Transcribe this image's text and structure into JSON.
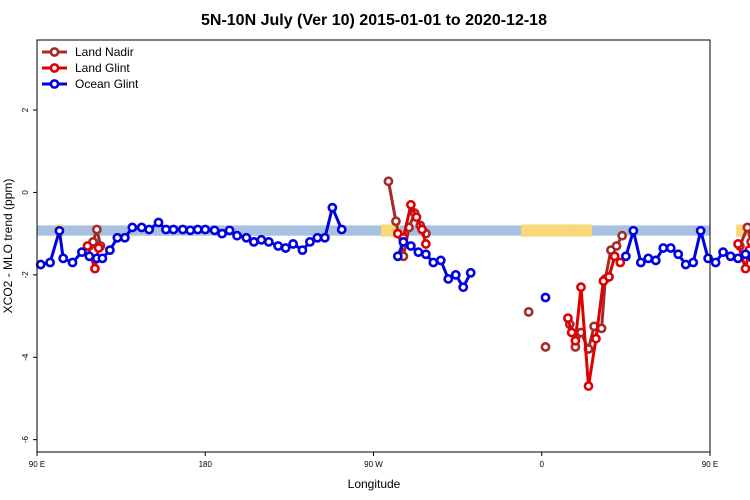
{
  "chart_data": {
    "type": "line",
    "title": "5N-10N July (Ver 10)   2015-01-01 to 2020-12-18",
    "xlabel": "Longitude",
    "ylabel": "XCO2 - MLO trend (ppm)",
    "xlim": [
      0,
      360
    ],
    "ylim": [
      -6.3,
      3.7
    ],
    "x_ticks": [
      {
        "value": 0,
        "label": "90 E"
      },
      {
        "value": 90,
        "label": "180"
      },
      {
        "value": 180,
        "label": "90 W"
      },
      {
        "value": 270,
        "label": "0"
      },
      {
        "value": 360,
        "label": "90 E"
      },
      {
        "value": 450,
        "label": "180"
      }
    ],
    "y_ticks": [
      2,
      0,
      -2,
      -4,
      -6
    ],
    "legend_position": "top-left",
    "band": {
      "y_top": -0.8,
      "y_bottom": -1.05,
      "ocean_color": "#a8c1e0",
      "land_color": "#f9d87a",
      "land_segments": [
        {
          "x_start": 10,
          "x_end": 14
        },
        {
          "x_start": 184,
          "x_end": 194
        },
        {
          "x_start": 259,
          "x_end": 285
        },
        {
          "x_start": 285,
          "x_end": 297
        },
        {
          "x_start": 374,
          "x_end": 382
        }
      ]
    },
    "series": [
      {
        "name": "Land Nadir",
        "color": "#a52a2a",
        "segments": [
          [
            {
              "x": 28,
              "y": -1.3
            },
            {
              "x": 30,
              "y": -1.2
            },
            {
              "x": 32,
              "y": -0.9
            },
            {
              "x": 34,
              "y": -1.3
            }
          ],
          [
            {
              "x": 188,
              "y": 0.27
            },
            {
              "x": 192,
              "y": -0.7
            },
            {
              "x": 196,
              "y": -1.55
            },
            {
              "x": 199,
              "y": -0.85
            },
            {
              "x": 202,
              "y": -0.5
            },
            {
              "x": 205,
              "y": -0.8
            },
            {
              "x": 208,
              "y": -1.0
            }
          ],
          [
            {
              "x": 263,
              "y": -2.9
            }
          ],
          [
            {
              "x": 272,
              "y": -3.75
            }
          ],
          [
            {
              "x": 285,
              "y": -3.2
            },
            {
              "x": 288,
              "y": -3.75
            },
            {
              "x": 291,
              "y": -3.4
            },
            {
              "x": 295,
              "y": -3.8
            },
            {
              "x": 298,
              "y": -3.25
            },
            {
              "x": 302,
              "y": -3.3
            },
            {
              "x": 304,
              "y": -2.1
            },
            {
              "x": 307,
              "y": -1.4
            },
            {
              "x": 310,
              "y": -1.3
            },
            {
              "x": 313,
              "y": -1.05
            }
          ],
          [
            {
              "x": 376,
              "y": -1.3
            },
            {
              "x": 380,
              "y": -0.85
            },
            {
              "x": 382,
              "y": -1.2
            }
          ]
        ]
      },
      {
        "name": "Land Glint",
        "color": "#e00000",
        "segments": [
          [
            {
              "x": 27,
              "y": -1.3
            },
            {
              "x": 31,
              "y": -1.85
            },
            {
              "x": 33,
              "y": -1.35
            }
          ],
          [
            {
              "x": 193,
              "y": -1.0
            },
            {
              "x": 196,
              "y": -1.1
            },
            {
              "x": 200,
              "y": -0.3
            },
            {
              "x": 203,
              "y": -0.6
            },
            {
              "x": 206,
              "y": -0.9
            },
            {
              "x": 208,
              "y": -1.25
            }
          ],
          [
            {
              "x": 284,
              "y": -3.05
            },
            {
              "x": 286,
              "y": -3.4
            },
            {
              "x": 288,
              "y": -3.6
            },
            {
              "x": 291,
              "y": -2.3
            },
            {
              "x": 295,
              "y": -4.7
            },
            {
              "x": 299,
              "y": -3.55
            },
            {
              "x": 303,
              "y": -2.15
            },
            {
              "x": 306,
              "y": -2.05
            },
            {
              "x": 309,
              "y": -1.55
            },
            {
              "x": 312,
              "y": -1.7
            }
          ],
          [
            {
              "x": 375,
              "y": -1.25
            },
            {
              "x": 379,
              "y": -1.85
            },
            {
              "x": 381,
              "y": -1.4
            }
          ]
        ]
      },
      {
        "name": "Ocean Glint",
        "color": "#0000e0",
        "segments": [
          [
            {
              "x": 2,
              "y": -1.75
            },
            {
              "x": 7,
              "y": -1.7
            },
            {
              "x": 12,
              "y": -0.93
            },
            {
              "x": 14,
              "y": -1.6
            },
            {
              "x": 19,
              "y": -1.7
            },
            {
              "x": 24,
              "y": -1.45
            },
            {
              "x": 28,
              "y": -1.55
            },
            {
              "x": 32,
              "y": -1.6
            },
            {
              "x": 35,
              "y": -1.6
            },
            {
              "x": 39,
              "y": -1.4
            },
            {
              "x": 43,
              "y": -1.1
            },
            {
              "x": 47,
              "y": -1.1
            },
            {
              "x": 51,
              "y": -0.85
            },
            {
              "x": 56,
              "y": -0.85
            },
            {
              "x": 60,
              "y": -0.9
            },
            {
              "x": 65,
              "y": -0.73
            },
            {
              "x": 69,
              "y": -0.9
            },
            {
              "x": 73,
              "y": -0.9
            },
            {
              "x": 78,
              "y": -0.9
            },
            {
              "x": 82,
              "y": -0.92
            },
            {
              "x": 86,
              "y": -0.9
            },
            {
              "x": 90,
              "y": -0.9
            },
            {
              "x": 95,
              "y": -0.92
            },
            {
              "x": 99,
              "y": -1.0
            },
            {
              "x": 103,
              "y": -0.92
            },
            {
              "x": 107,
              "y": -1.05
            },
            {
              "x": 112,
              "y": -1.1
            },
            {
              "x": 116,
              "y": -1.2
            },
            {
              "x": 120,
              "y": -1.15
            },
            {
              "x": 124,
              "y": -1.2
            },
            {
              "x": 129,
              "y": -1.3
            },
            {
              "x": 133,
              "y": -1.35
            },
            {
              "x": 137,
              "y": -1.25
            },
            {
              "x": 142,
              "y": -1.4
            },
            {
              "x": 146,
              "y": -1.2
            },
            {
              "x": 150,
              "y": -1.1
            },
            {
              "x": 154,
              "y": -1.1
            },
            {
              "x": 158,
              "y": -0.37
            },
            {
              "x": 163,
              "y": -0.9
            }
          ],
          [
            {
              "x": 193,
              "y": -1.55
            },
            {
              "x": 196,
              "y": -1.2
            },
            {
              "x": 200,
              "y": -1.3
            },
            {
              "x": 204,
              "y": -1.45
            },
            {
              "x": 208,
              "y": -1.5
            },
            {
              "x": 212,
              "y": -1.7
            },
            {
              "x": 216,
              "y": -1.65
            },
            {
              "x": 220,
              "y": -2.1
            },
            {
              "x": 224,
              "y": -2.0
            },
            {
              "x": 228,
              "y": -2.3
            },
            {
              "x": 232,
              "y": -1.95
            }
          ],
          [
            {
              "x": 272,
              "y": -2.55
            }
          ],
          [
            {
              "x": 315,
              "y": -1.55
            },
            {
              "x": 319,
              "y": -0.93
            },
            {
              "x": 323,
              "y": -1.7
            },
            {
              "x": 327,
              "y": -1.6
            },
            {
              "x": 331,
              "y": -1.65
            },
            {
              "x": 335,
              "y": -1.35
            },
            {
              "x": 339,
              "y": -1.35
            },
            {
              "x": 343,
              "y": -1.5
            },
            {
              "x": 347,
              "y": -1.75
            },
            {
              "x": 351,
              "y": -1.7
            },
            {
              "x": 355,
              "y": -0.93
            },
            {
              "x": 359,
              "y": -1.6
            },
            {
              "x": 363,
              "y": -1.7
            },
            {
              "x": 367,
              "y": -1.45
            },
            {
              "x": 371,
              "y": -1.55
            },
            {
              "x": 375,
              "y": -1.6
            },
            {
              "x": 379,
              "y": -1.5
            },
            {
              "x": 383,
              "y": -1.6
            },
            {
              "x": 387,
              "y": -1.4
            },
            {
              "x": 391,
              "y": -1.1
            },
            {
              "x": 395,
              "y": -1.1
            },
            {
              "x": 399,
              "y": -0.85
            },
            {
              "x": 403,
              "y": -0.85
            },
            {
              "x": 407,
              "y": -0.9
            },
            {
              "x": 411,
              "y": -0.73
            },
            {
              "x": 415,
              "y": -0.9
            },
            {
              "x": 419,
              "y": -0.9
            },
            {
              "x": 424,
              "y": -0.85
            }
          ]
        ]
      }
    ]
  }
}
